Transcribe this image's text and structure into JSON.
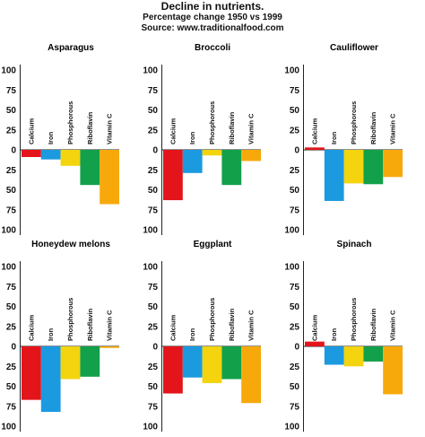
{
  "header": {
    "title": "Decline in nutrients.",
    "subtitle": "Percentage change 1950 vs 1999",
    "source": "Source: www.traditionalfood.com"
  },
  "colors": {
    "Calcium": "#e4141b",
    "Iron": "#1b9ae0",
    "Phosphorous": "#f3d40e",
    "Riboflavin": "#13a04a",
    "Vitamin C": "#f7a90b"
  },
  "chart_data": [
    {
      "type": "bar",
      "title": "Asparagus",
      "categories": [
        "Calcium",
        "Iron",
        "Phosphorous",
        "Riboflavin",
        "Vitamin C"
      ],
      "values": [
        -9,
        -12,
        -20,
        -44,
        -68
      ],
      "yticks": [
        "100",
        "75",
        "50",
        "25",
        "0",
        "25",
        "50",
        "75",
        "100"
      ],
      "ylim": [
        -100,
        100
      ]
    },
    {
      "type": "bar",
      "title": "Broccoli",
      "categories": [
        "Calcium",
        "Iron",
        "Phosphorous",
        "Riboflavin",
        "Vitamin C"
      ],
      "values": [
        -63,
        -29,
        -7,
        -44,
        -14
      ],
      "yticks": [
        "100",
        "75",
        "50",
        "25",
        "0",
        "25",
        "50",
        "75",
        "100"
      ],
      "ylim": [
        -100,
        100
      ]
    },
    {
      "type": "bar",
      "title": "Cauliflower",
      "categories": [
        "Calcium",
        "Iron",
        "Phosphorous",
        "Riboflavin",
        "Vitamin C"
      ],
      "values": [
        3,
        -64,
        -42,
        -43,
        -34
      ],
      "yticks": [
        "100",
        "75",
        "50",
        "25",
        "0",
        "25",
        "50",
        "75",
        "100"
      ],
      "ylim": [
        -100,
        100
      ]
    },
    {
      "type": "bar",
      "title": "Honeydew melons",
      "categories": [
        "Calcium",
        "Iron",
        "Phosphorous",
        "Riboflavin",
        "Vitamin C"
      ],
      "values": [
        -67,
        -82,
        -41,
        -38,
        -2
      ],
      "yticks": [
        "100",
        "75",
        "50",
        "25",
        "0",
        "25",
        "50",
        "75",
        "100"
      ],
      "ylim": [
        -100,
        100
      ]
    },
    {
      "type": "bar",
      "title": "Eggplant",
      "categories": [
        "Calcium",
        "Iron",
        "Phosphorous",
        "Riboflavin",
        "Vitamin C"
      ],
      "values": [
        -59,
        -39,
        -46,
        -41,
        -71
      ],
      "yticks": [
        "100",
        "75",
        "50",
        "25",
        "0",
        "25",
        "50",
        "75",
        "100"
      ],
      "ylim": [
        -100,
        100
      ]
    },
    {
      "type": "bar",
      "title": "Spinach",
      "categories": [
        "Calcium",
        "Iron",
        "Phosphorous",
        "Riboflavin",
        "Vitamin C"
      ],
      "values": [
        6,
        -23,
        -25,
        -19,
        -60
      ],
      "yticks": [
        "100",
        "75",
        "50",
        "25",
        "0",
        "25",
        "50",
        "75",
        "100"
      ],
      "ylim": [
        -100,
        100
      ]
    }
  ]
}
